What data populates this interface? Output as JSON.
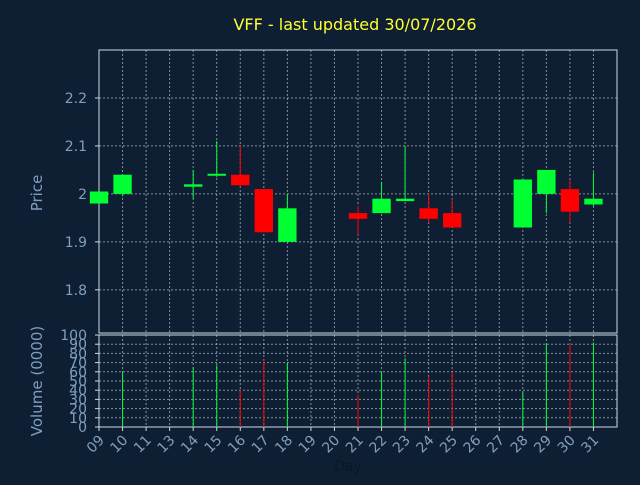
{
  "chart_data": {
    "type": "candlestick",
    "title": "VFF - last updated 30/07/2026",
    "colors": {
      "background": "#0f1f33",
      "title": "#ffff33",
      "axis_text": "#7f9fbf",
      "grid": "#cfd8e3",
      "frame": "#cfd8e3",
      "up": "#00ff33",
      "down": "#ff0000"
    },
    "x": {
      "label": "Day",
      "ticks": [
        "09",
        "10",
        "11",
        "13",
        "14",
        "15",
        "16",
        "17",
        "18",
        "19",
        "20",
        "21",
        "22",
        "23",
        "24",
        "25",
        "26",
        "27",
        "28",
        "29",
        "30",
        "31"
      ],
      "range": [
        0,
        22
      ]
    },
    "price": {
      "ylabel": "Price",
      "ylim": [
        1.71,
        2.3
      ],
      "ticks": [
        "1.8",
        "1.9",
        "2",
        "2.1",
        "2.2"
      ],
      "tick_values": [
        1.8,
        1.9,
        2.0,
        2.1,
        2.2
      ],
      "grid": true
    },
    "volume": {
      "ylabel": "Volume (0000)",
      "ylim": [
        0,
        100
      ],
      "ticks": [
        "0",
        "10",
        "20",
        "30",
        "40",
        "50",
        "60",
        "70",
        "80",
        "90",
        "100"
      ],
      "tick_values": [
        0,
        10,
        20,
        30,
        40,
        50,
        60,
        70,
        80,
        90,
        100
      ]
    },
    "candles": [
      {
        "day": "09",
        "x": 0.0,
        "open": 1.98,
        "high": 2.005,
        "low": 1.98,
        "close": 2.005
      },
      {
        "day": "10",
        "x": 1.0,
        "open": 2.0,
        "high": 2.04,
        "low": 1.995,
        "close": 2.04
      },
      {
        "day": "13",
        "x": 4.0,
        "open": 2.015,
        "high": 2.05,
        "low": 1.99,
        "close": 2.02
      },
      {
        "day": "14",
        "x": 5.0,
        "open": 2.038,
        "high": 2.11,
        "low": 2.035,
        "close": 2.042
      },
      {
        "day": "15",
        "x": 6.0,
        "open": 2.04,
        "high": 2.1,
        "low": 2.015,
        "close": 2.018
      },
      {
        "day": "16",
        "x": 7.0,
        "open": 2.01,
        "high": 2.01,
        "low": 1.92,
        "close": 1.92
      },
      {
        "day": "17",
        "x": 8.0,
        "open": 1.9,
        "high": 2.0,
        "low": 1.9,
        "close": 1.97
      },
      {
        "day": "20",
        "x": 11.0,
        "open": 1.96,
        "high": 1.975,
        "low": 1.915,
        "close": 1.948
      },
      {
        "day": "21",
        "x": 12.0,
        "open": 1.96,
        "high": 2.025,
        "low": 1.96,
        "close": 1.99
      },
      {
        "day": "22",
        "x": 13.0,
        "open": 1.985,
        "high": 2.1,
        "low": 1.985,
        "close": 1.99
      },
      {
        "day": "23",
        "x": 14.0,
        "open": 1.97,
        "high": 2.0,
        "low": 1.94,
        "close": 1.948
      },
      {
        "day": "24",
        "x": 15.0,
        "open": 1.96,
        "high": 1.99,
        "low": 1.93,
        "close": 1.93
      },
      {
        "day": "27",
        "x": 18.0,
        "open": 1.93,
        "high": 2.03,
        "low": 1.93,
        "close": 2.03
      },
      {
        "day": "28",
        "x": 19.0,
        "open": 2.0,
        "high": 2.05,
        "low": 1.96,
        "close": 2.05
      },
      {
        "day": "29",
        "x": 20.0,
        "open": 2.01,
        "high": 2.03,
        "low": 1.94,
        "close": 1.963
      },
      {
        "day": "30",
        "x": 21.0,
        "open": 1.978,
        "high": 2.045,
        "low": 1.975,
        "close": 1.99
      }
    ],
    "volumes": [
      {
        "x": 1.0,
        "value": 60,
        "dir": "up"
      },
      {
        "x": 4.0,
        "value": 65,
        "dir": "up"
      },
      {
        "x": 5.0,
        "value": 67,
        "dir": "up"
      },
      {
        "x": 6.0,
        "value": 40,
        "dir": "down"
      },
      {
        "x": 7.0,
        "value": 73,
        "dir": "down"
      },
      {
        "x": 8.0,
        "value": 70,
        "dir": "up"
      },
      {
        "x": 11.0,
        "value": 35,
        "dir": "down"
      },
      {
        "x": 12.0,
        "value": 60,
        "dir": "up"
      },
      {
        "x": 13.0,
        "value": 75,
        "dir": "up"
      },
      {
        "x": 14.0,
        "value": 55,
        "dir": "down"
      },
      {
        "x": 15.0,
        "value": 60,
        "dir": "down"
      },
      {
        "x": 18.0,
        "value": 38,
        "dir": "up"
      },
      {
        "x": 19.0,
        "value": 91,
        "dir": "up"
      },
      {
        "x": 20.0,
        "value": 91,
        "dir": "down"
      },
      {
        "x": 21.0,
        "value": 92,
        "dir": "up"
      }
    ]
  }
}
